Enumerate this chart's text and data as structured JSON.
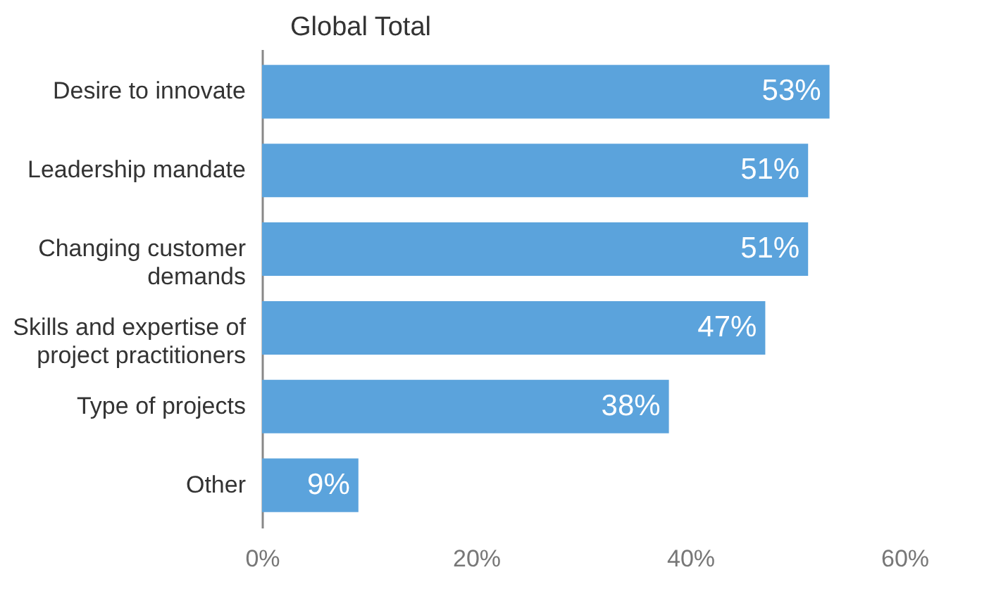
{
  "chart_data": {
    "type": "bar",
    "orientation": "horizontal",
    "title": "Global Total",
    "categories": [
      "Desire to innovate",
      "Leadership mandate",
      "Changing customer demands",
      "Skills and expertise of project practitioners",
      "Type of projects",
      "Other"
    ],
    "values": [
      53,
      51,
      51,
      47,
      38,
      9
    ],
    "value_labels": [
      "53%",
      "51%",
      "51%",
      "47%",
      "38%",
      "9%"
    ],
    "color": "#5ba3dc",
    "xlim": [
      0,
      60
    ],
    "xticks": [
      {
        "value": 0,
        "label": "0%"
      },
      {
        "value": 20,
        "label": "20%"
      },
      {
        "value": 40,
        "label": "40%"
      },
      {
        "value": 60,
        "label": "60%"
      }
    ],
    "grid": false
  }
}
